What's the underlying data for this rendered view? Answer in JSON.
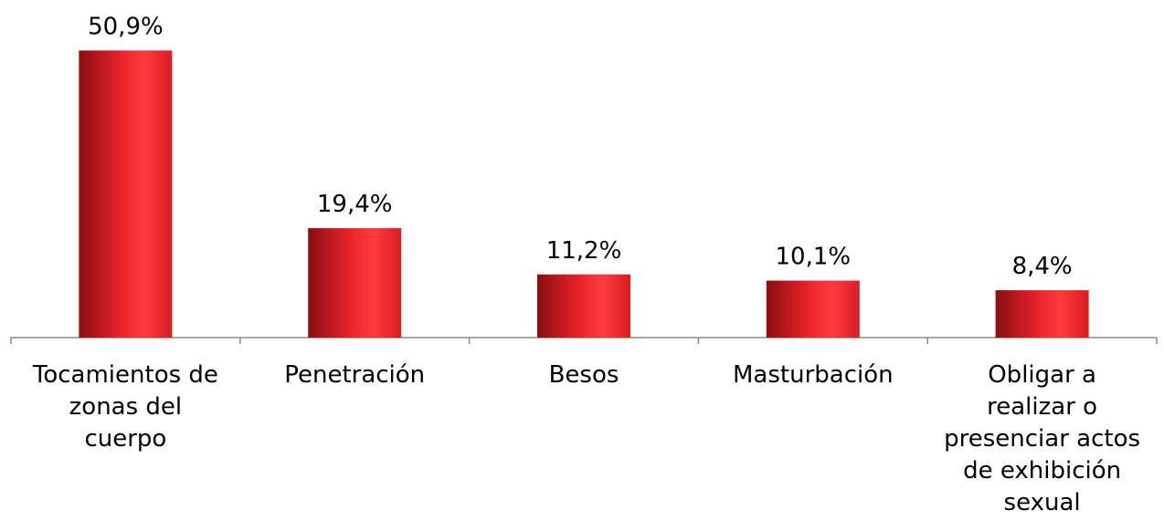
{
  "chart_data": {
    "type": "bar",
    "categories": [
      [
        "Tocamientos de",
        "zonas del",
        "cuerpo"
      ],
      [
        "Penetración"
      ],
      [
        "Besos"
      ],
      [
        "Masturbación"
      ],
      [
        "Obligar a",
        "realizar o",
        "presenciar actos",
        "de exhibición",
        "sexual"
      ]
    ],
    "values": [
      50.9,
      19.4,
      11.2,
      10.1,
      8.4
    ],
    "data_labels": [
      "50,9%",
      "19,4%",
      "11,2%",
      "10,1%",
      "8,4%"
    ],
    "ylim": [
      0,
      55
    ],
    "grid": false,
    "legend": "none",
    "colors": {
      "bar_dark": "#8b0d12",
      "bar_mid": "#e8232a",
      "bar_light": "#ff3b40",
      "axis": "#888888"
    }
  }
}
